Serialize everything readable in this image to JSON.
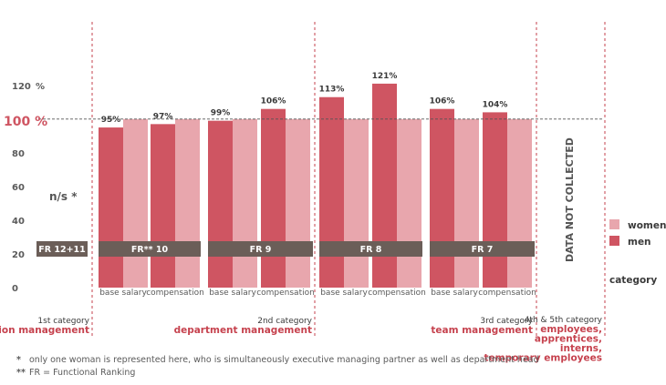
{
  "chart_data": {
    "type": "bar",
    "ylabel": "%",
    "ylim": [
      0,
      120
    ],
    "yticks": [
      "0",
      "20",
      "40",
      "60",
      "80",
      "100",
      "120"
    ],
    "reference_line": {
      "value": 100,
      "label": "100 %"
    },
    "x_axis_label": "category",
    "series": [
      {
        "name": "women",
        "color": "#e8a6ad"
      },
      {
        "name": "men",
        "color": "#cf5562"
      }
    ],
    "groups": [
      {
        "category_number": "1st category",
        "category_name": "division management",
        "band": "FR 12+11",
        "note": "n/s *",
        "bars": []
      },
      {
        "category_number": "",
        "category_name": "",
        "band": "FR** 10",
        "note": "",
        "bars": [
          {
            "label": "base salary",
            "men": 95,
            "women": 100,
            "value_label": "95%"
          },
          {
            "label": "compensation",
            "men": 97,
            "women": 100,
            "value_label": "97%"
          }
        ]
      },
      {
        "category_number": "2nd category",
        "category_name": "department  management",
        "band": "FR 9",
        "note": "",
        "bars": [
          {
            "label": "base salary",
            "men": 99,
            "women": 100,
            "value_label": "99%"
          },
          {
            "label": "compensation",
            "men": 106,
            "women": 100,
            "value_label": "106%"
          }
        ]
      },
      {
        "category_number": "",
        "category_name": "",
        "band": "FR 8",
        "note": "",
        "bars": [
          {
            "label": "base salary",
            "men": 113,
            "women": 100,
            "value_label": "113%"
          },
          {
            "label": "compensation",
            "men": 121,
            "women": 100,
            "value_label": "121%"
          }
        ]
      },
      {
        "category_number": "3rd category",
        "category_name": "team management",
        "band": "FR 7",
        "note": "",
        "bars": [
          {
            "label": "base salary",
            "men": 106,
            "women": 100,
            "value_label": "106%"
          },
          {
            "label": "compensation",
            "men": 104,
            "women": 100,
            "value_label": "104%"
          }
        ]
      },
      {
        "category_number": "4th & 5th category",
        "category_name": "employees, apprentices, interns, temporary employees",
        "band": "",
        "note": "DATA NOT COLLECTED",
        "bars": []
      }
    ],
    "footnotes": [
      "only one woman is represented here, who is simultaneously executive managing partner as well as department head",
      "FR = Functional Ranking"
    ],
    "footnote_markers": [
      "*",
      "**"
    ]
  }
}
